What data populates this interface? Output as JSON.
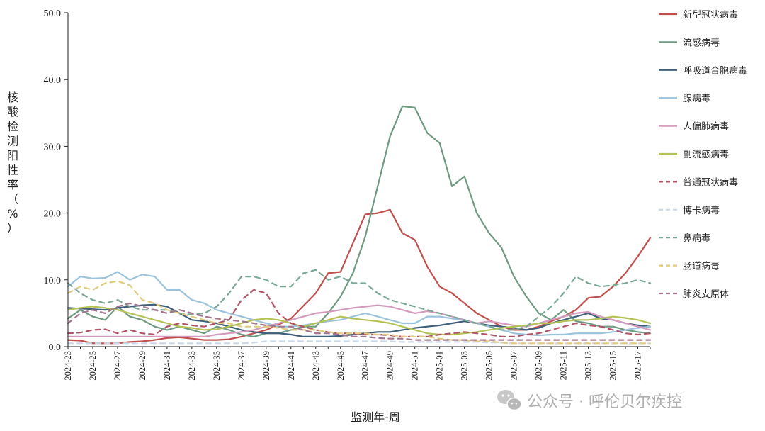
{
  "chart_data": {
    "type": "line",
    "ylabel": "核酸检测阳性率（%）",
    "xlabel": "监测年-周",
    "ylim": [
      0,
      50
    ],
    "yticks": [
      "0.0",
      "10.0",
      "20.0",
      "30.0",
      "40.0",
      "50.0"
    ],
    "grid": false,
    "legend_position": "right",
    "x": [
      "2024-23",
      "2024-24",
      "2024-25",
      "2024-26",
      "2024-27",
      "2024-28",
      "2024-29",
      "2024-30",
      "2024-31",
      "2024-32",
      "2024-33",
      "2024-34",
      "2024-35",
      "2024-36",
      "2024-37",
      "2024-38",
      "2024-39",
      "2024-40",
      "2024-41",
      "2024-42",
      "2024-43",
      "2024-44",
      "2024-45",
      "2024-46",
      "2024-47",
      "2024-48",
      "2024-49",
      "2024-50",
      "2024-51",
      "2024-52",
      "2025-01",
      "2025-02",
      "2025-03",
      "2025-04",
      "2025-05",
      "2025-06",
      "2025-07",
      "2025-08",
      "2025-09",
      "2025-10",
      "2025-11",
      "2025-12",
      "2025-13",
      "2025-14",
      "2025-15",
      "2025-16",
      "2025-17",
      "2025-18"
    ],
    "xtick_labels": [
      "2024-23",
      "2024-25",
      "2024-27",
      "2024-29",
      "2024-31",
      "2024-33",
      "2024-35",
      "2024-37",
      "2024-39",
      "2024-41",
      "2024-43",
      "2024-45",
      "2024-47",
      "2024-49",
      "2024-51",
      "2025-01",
      "2025-03",
      "2025-05",
      "2025-07",
      "2025-09",
      "2025-11",
      "2025-13",
      "2025-15",
      "2025-17"
    ],
    "series": [
      {
        "name": "新型冠状病毒",
        "color": "#c0504d",
        "dash": "solid",
        "values": [
          1.0,
          0.9,
          0.5,
          0.5,
          0.5,
          0.7,
          0.8,
          1.0,
          1.3,
          1.4,
          1.2,
          1.0,
          1.0,
          1.1,
          1.5,
          2.0,
          2.5,
          3.3,
          4.2,
          6.1,
          8.0,
          11.0,
          11.2,
          15.5,
          19.8,
          20.0,
          20.5,
          17.0,
          16.0,
          12.0,
          9.0,
          8.0,
          6.5,
          5.0,
          4.0,
          3.0,
          2.5,
          2.5,
          3.0,
          3.8,
          4.5,
          5.5,
          7.3,
          7.5,
          9.0,
          11.0,
          13.5,
          16.3
        ]
      },
      {
        "name": "流感病毒",
        "color": "#6f9a82",
        "dash": "solid",
        "values": [
          4.2,
          5.5,
          4.5,
          4.0,
          6.0,
          4.5,
          4.0,
          3.0,
          2.5,
          3.0,
          2.5,
          2.0,
          3.0,
          2.5,
          1.8,
          1.5,
          2.0,
          2.0,
          2.5,
          3.0,
          3.0,
          5.0,
          7.5,
          11.0,
          16.5,
          24.0,
          31.5,
          36.0,
          35.8,
          32.0,
          30.5,
          24.0,
          25.5,
          20.0,
          17.0,
          14.8,
          10.5,
          7.5,
          5.0,
          4.0,
          5.5,
          3.8,
          3.5,
          3.0,
          3.0,
          2.5,
          2.2,
          2.0
        ]
      },
      {
        "name": "呼吸道合胞病毒",
        "color": "#3f5f7a",
        "dash": "solid",
        "values": [
          5.8,
          5.7,
          5.6,
          5.5,
          5.8,
          6.0,
          6.2,
          6.3,
          6.0,
          5.0,
          4.0,
          3.8,
          3.5,
          3.0,
          2.5,
          2.2,
          2.0,
          2.0,
          1.8,
          1.5,
          1.5,
          1.5,
          1.6,
          1.8,
          2.0,
          2.2,
          2.2,
          2.5,
          2.8,
          3.0,
          3.2,
          3.5,
          3.8,
          3.5,
          3.2,
          3.0,
          2.8,
          2.5,
          2.8,
          3.5,
          4.0,
          4.5,
          5.0,
          4.2,
          4.0,
          3.5,
          3.2,
          3.0
        ]
      },
      {
        "name": "腺病毒",
        "color": "#9cc3dc",
        "dash": "solid",
        "values": [
          9.0,
          10.5,
          10.2,
          10.3,
          11.2,
          10.0,
          10.8,
          10.5,
          8.5,
          8.5,
          7.0,
          6.5,
          5.5,
          5.0,
          4.5,
          4.0,
          3.5,
          3.0,
          3.0,
          3.2,
          3.5,
          3.8,
          4.0,
          4.5,
          5.0,
          4.5,
          4.0,
          3.5,
          3.5,
          4.5,
          4.5,
          4.2,
          4.0,
          3.5,
          3.0,
          2.5,
          2.0,
          1.8,
          1.7,
          1.8,
          1.8,
          2.0,
          2.0,
          2.0,
          2.2,
          2.5,
          2.8,
          3.0
        ]
      },
      {
        "name": "人偏肺病毒",
        "color": "#d49bbd",
        "dash": "solid",
        "values": [
          1.5,
          1.5,
          1.5,
          1.5,
          1.5,
          1.5,
          1.5,
          1.5,
          1.5,
          1.5,
          1.5,
          1.5,
          1.8,
          2.0,
          2.2,
          2.5,
          3.0,
          3.5,
          4.0,
          4.5,
          5.0,
          5.2,
          5.5,
          5.8,
          6.0,
          6.2,
          6.0,
          5.5,
          5.0,
          5.3,
          5.0,
          4.5,
          4.0,
          3.5,
          3.8,
          3.5,
          3.2,
          3.0,
          3.5,
          4.0,
          4.5,
          5.0,
          5.2,
          4.5,
          4.0,
          3.5,
          3.0,
          2.5
        ]
      },
      {
        "name": "副流感病毒",
        "color": "#b5c255",
        "dash": "solid",
        "values": [
          5.5,
          5.8,
          6.0,
          5.8,
          5.5,
          5.0,
          4.5,
          4.0,
          3.5,
          3.0,
          2.8,
          2.5,
          2.6,
          3.0,
          3.5,
          4.0,
          4.2,
          4.0,
          3.5,
          3.0,
          3.5,
          4.0,
          4.5,
          4.2,
          4.0,
          3.8,
          3.5,
          3.0,
          2.5,
          2.0,
          1.8,
          1.8,
          2.0,
          2.2,
          2.5,
          2.8,
          3.0,
          3.2,
          3.5,
          3.5,
          3.8,
          4.0,
          4.0,
          4.2,
          4.5,
          4.3,
          4.0,
          3.5
        ]
      },
      {
        "name": "普通冠状病毒",
        "color": "#b05566",
        "dash": "dashed",
        "values": [
          2.0,
          2.1,
          2.5,
          2.6,
          2.0,
          2.5,
          2.0,
          1.8,
          3.0,
          3.5,
          3.2,
          3.0,
          3.5,
          4.0,
          7.0,
          8.5,
          8.0,
          5.0,
          3.5,
          3.0,
          2.5,
          2.2,
          2.0,
          2.0,
          1.8,
          1.8,
          1.7,
          1.5,
          1.5,
          1.5,
          1.8,
          2.0,
          2.2,
          2.0,
          1.8,
          1.5,
          1.5,
          1.8,
          2.0,
          2.5,
          3.0,
          3.5,
          3.2,
          3.0,
          2.5,
          2.0,
          1.8,
          2.0
        ]
      },
      {
        "name": "博卡病毒",
        "color": "#c9d7e8",
        "dash": "dashed",
        "values": [
          0.5,
          0.5,
          0.5,
          0.5,
          0.5,
          0.5,
          0.5,
          0.5,
          0.5,
          0.5,
          0.5,
          0.5,
          0.5,
          0.5,
          0.5,
          0.6,
          0.8,
          0.8,
          0.8,
          0.8,
          0.8,
          0.8,
          0.8,
          0.8,
          0.8,
          0.8,
          0.8,
          0.7,
          0.7,
          0.7,
          0.7,
          0.7,
          0.7,
          0.7,
          0.6,
          0.6,
          0.5,
          0.5,
          0.5,
          0.5,
          0.5,
          0.5,
          0.5,
          0.5,
          0.5,
          0.5,
          0.5,
          0.5
        ]
      },
      {
        "name": "鼻病毒",
        "color": "#7aa894",
        "dash": "dashed",
        "values": [
          9.5,
          8.0,
          7.0,
          6.5,
          7.0,
          6.0,
          5.5,
          5.5,
          5.5,
          5.0,
          4.8,
          5.0,
          6.0,
          8.0,
          10.5,
          10.5,
          10.0,
          9.0,
          9.0,
          11.0,
          11.5,
          10.0,
          10.5,
          9.5,
          9.5,
          8.0,
          7.0,
          6.5,
          6.0,
          5.5,
          5.0,
          4.5,
          4.0,
          3.5,
          3.0,
          2.5,
          2.5,
          3.0,
          4.5,
          6.0,
          8.0,
          10.5,
          9.5,
          9.0,
          9.2,
          9.5,
          10.0,
          9.5
        ]
      },
      {
        "name": "肠道病毒",
        "color": "#e0cc80",
        "dash": "dashed",
        "values": [
          8.0,
          9.0,
          8.5,
          9.5,
          9.8,
          9.2,
          7.0,
          6.5,
          5.5,
          5.0,
          4.5,
          4.0,
          3.5,
          3.5,
          3.0,
          3.0,
          3.0,
          2.8,
          2.5,
          2.5,
          2.5,
          2.2,
          2.0,
          2.0,
          2.0,
          1.8,
          1.8,
          1.5,
          1.5,
          1.5,
          1.2,
          1.0,
          1.0,
          0.8,
          0.8,
          0.6,
          0.5,
          0.5,
          0.5,
          0.5,
          0.5,
          0.5,
          0.5,
          0.5,
          0.5,
          0.5,
          0.5,
          0.5
        ]
      },
      {
        "name": "肺炎支原体",
        "color": "#a3758f",
        "dash": "dashed",
        "values": [
          3.5,
          5.0,
          5.5,
          5.0,
          6.0,
          6.5,
          6.0,
          5.5,
          5.0,
          5.5,
          5.0,
          4.5,
          4.2,
          4.0,
          3.8,
          3.5,
          3.2,
          3.0,
          3.0,
          2.5,
          2.0,
          2.0,
          1.8,
          1.5,
          1.5,
          1.3,
          1.2,
          1.2,
          1.0,
          1.0,
          1.0,
          1.0,
          1.0,
          1.0,
          1.0,
          1.0,
          1.0,
          1.0,
          1.0,
          1.0,
          1.0,
          1.0,
          1.0,
          1.0,
          1.0,
          1.0,
          1.0,
          1.0
        ]
      }
    ]
  },
  "watermark": {
    "icon": "wechat-icon",
    "text": "公众号 · 呼伦贝尔疾控"
  }
}
